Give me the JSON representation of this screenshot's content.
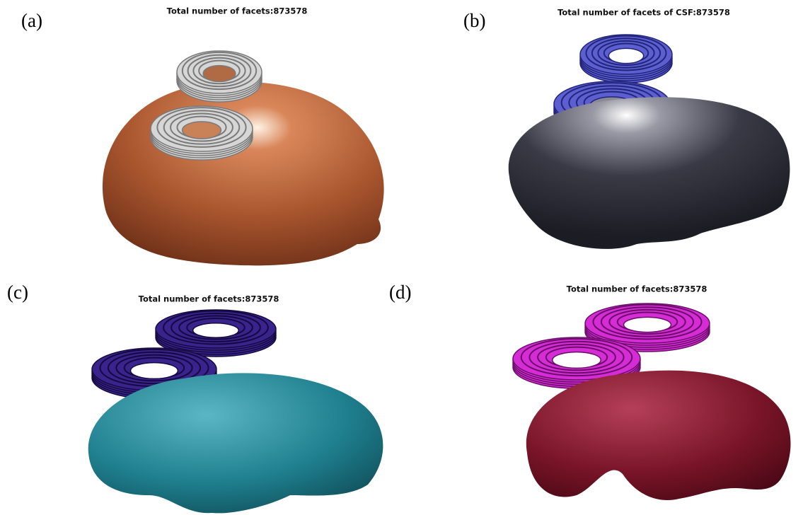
{
  "panels": [
    {
      "label": "(a)",
      "title": "Total number of facets:873578"
    },
    {
      "label": "(b)",
      "title": "Total number of facets of CSF:873578"
    },
    {
      "label": "(c)",
      "title": "Total number of facets:873578"
    },
    {
      "label": "(d)",
      "title": "Total number of facets:873578"
    }
  ]
}
